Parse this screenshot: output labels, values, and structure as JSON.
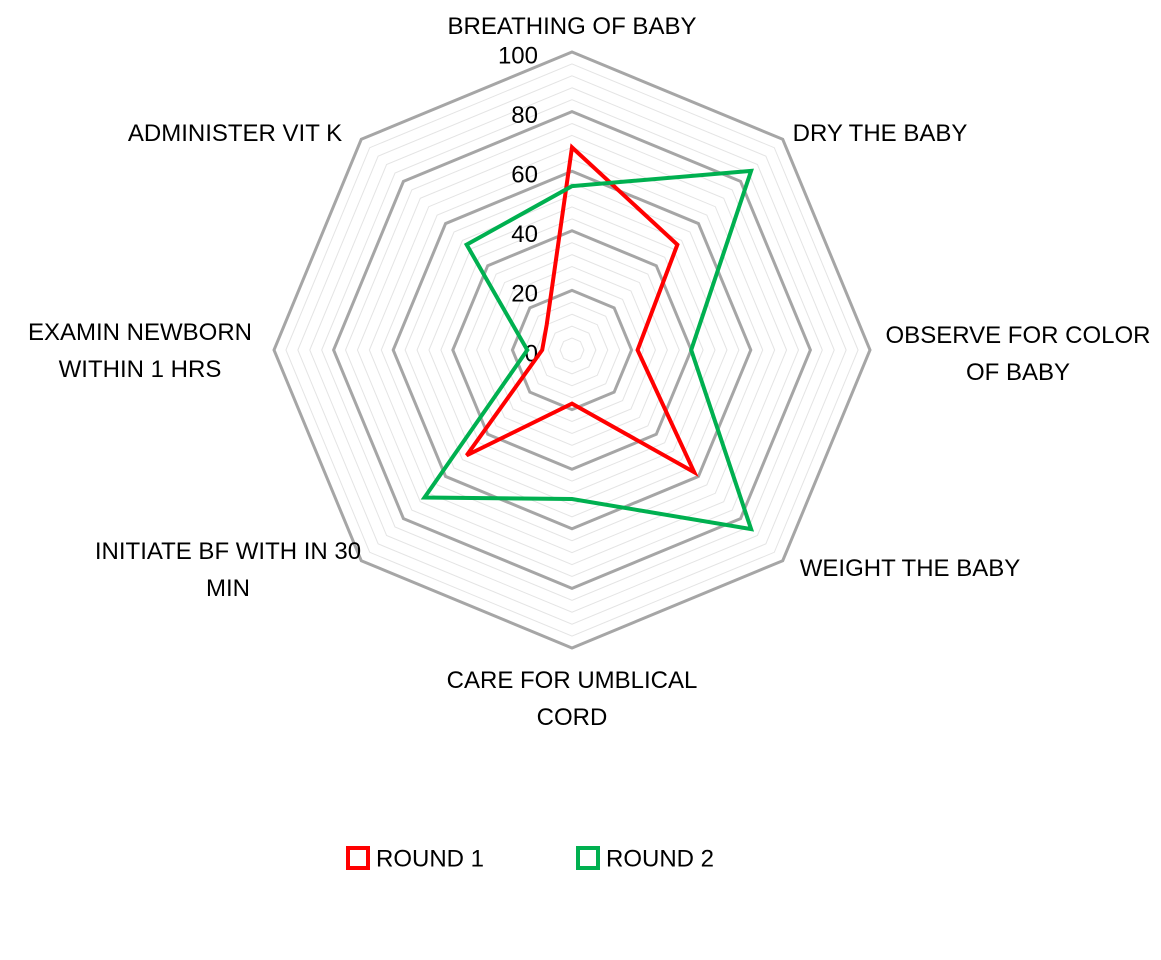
{
  "chart_data": {
    "type": "radar",
    "categories": [
      "BREATHING OF BABY",
      "DRY THE BABY",
      "OBSERVE FOR COLOR OF BABY",
      "WEIGHT THE BABY",
      "CARE FOR UMBLICAL CORD",
      "INITIATE BF WITH IN 30 MIN",
      "EXAMIN NEWBORN WITHIN 1 HRS",
      "ADMINISTER VIT K"
    ],
    "series": [
      {
        "name": "ROUND 1",
        "color": "#ff0000",
        "values": [
          68,
          50,
          22,
          58,
          18,
          50,
          10,
          12
        ]
      },
      {
        "name": "ROUND 2",
        "color": "#00b050",
        "values": [
          55,
          85,
          40,
          85,
          50,
          70,
          15,
          50
        ]
      }
    ],
    "ylim": [
      0,
      100
    ],
    "yticks": [
      0,
      20,
      40,
      60,
      80,
      100
    ],
    "grid": true,
    "legend": "bottom"
  }
}
